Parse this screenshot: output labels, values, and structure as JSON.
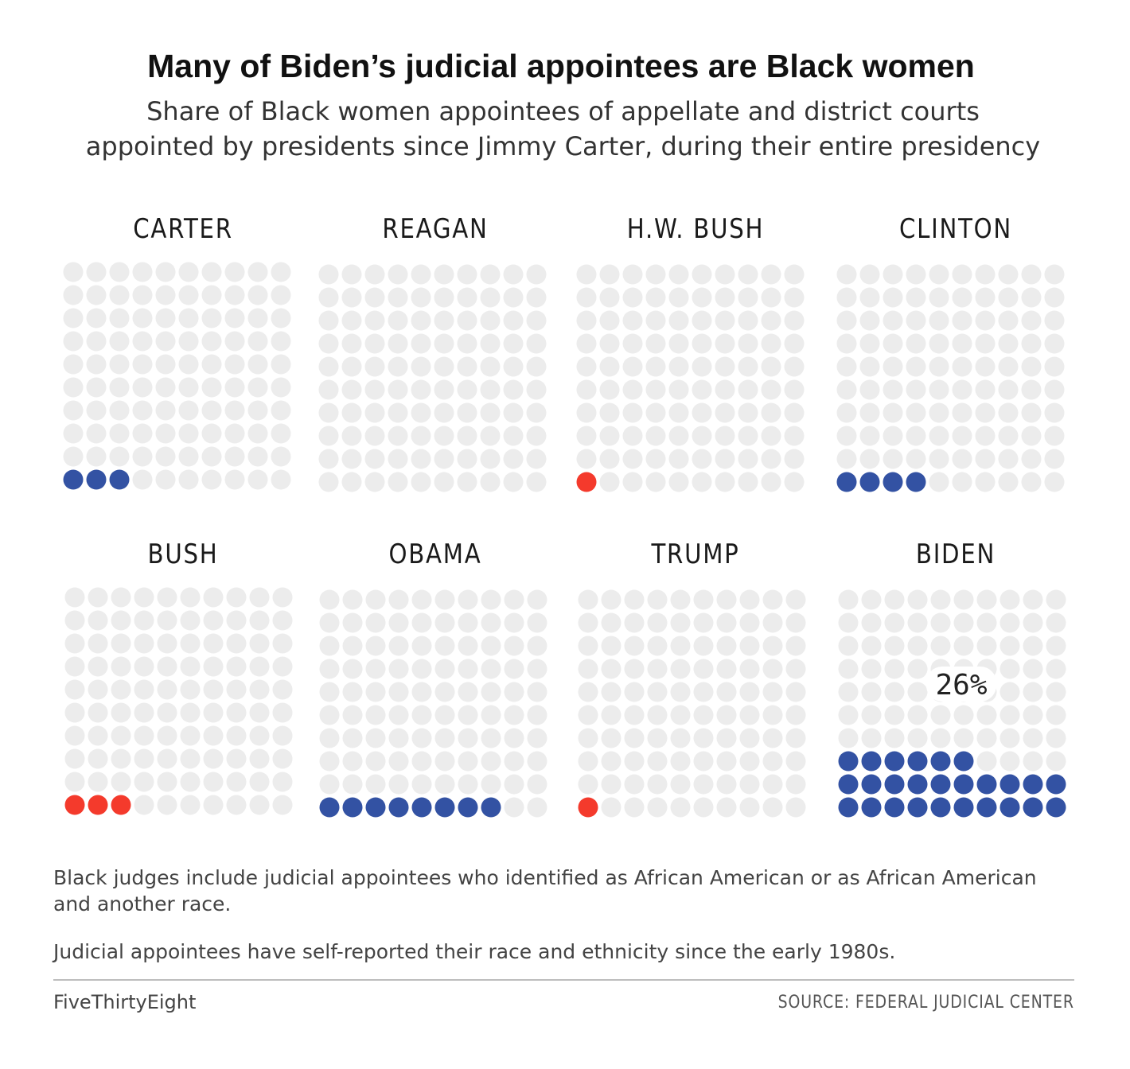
{
  "title": "Many of Biden’s judicial appointees are Black women",
  "subtitle_line1": "Share of Black women appointees of appellate and district courts",
  "subtitle_line2": "appointed by presidents since Jimmy Carter, during their entire presidency",
  "colors": {
    "empty_dot": "#ececec",
    "democrat": "#3352a3",
    "republican": "#f43a2c"
  },
  "chart_data": {
    "type": "waffle",
    "grid": {
      "columns": 10,
      "rows": 10,
      "units": 100
    },
    "units_label": "percent of appointees",
    "panels": [
      {
        "name": "CARTER",
        "party": "democrat",
        "filled": 3
      },
      {
        "name": "REAGAN",
        "party": "republican",
        "filled": 0
      },
      {
        "name": "H.W. BUSH",
        "party": "republican",
        "filled": 1
      },
      {
        "name": "CLINTON",
        "party": "democrat",
        "filled": 4
      },
      {
        "name": "BUSH",
        "party": "republican",
        "filled": 3
      },
      {
        "name": "OBAMA",
        "party": "democrat",
        "filled": 8
      },
      {
        "name": "TRUMP",
        "party": "republican",
        "filled": 1
      },
      {
        "name": "BIDEN",
        "party": "democrat",
        "filled": 26,
        "annotation": "26%"
      }
    ]
  },
  "notes": {
    "note1": "Black judges include judicial appointees who identified as African American or as African American and another race.",
    "note2": "Judicial appointees have self-reported their race and ethnicity since the early 1980s."
  },
  "footer": {
    "brand": "FiveThirtyEight",
    "source": "SOURCE: FEDERAL JUDICIAL CENTER"
  }
}
